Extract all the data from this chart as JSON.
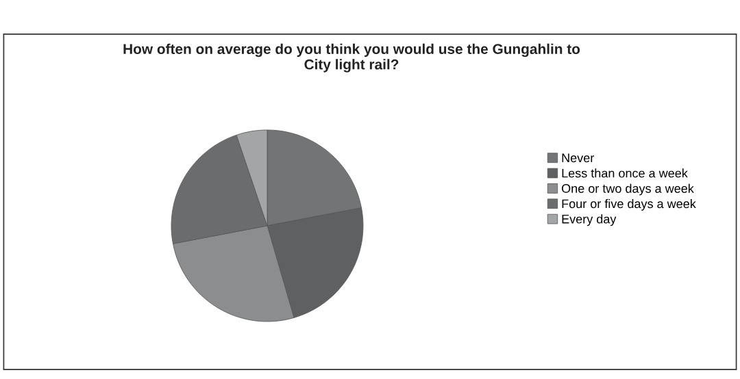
{
  "chart_data": {
    "type": "pie",
    "title": "How often on average do you think you would use the Gungahlin to\nCity light rail?",
    "categories": [
      "Never",
      "Less than once a week",
      "One or two days a week",
      "Four or five days a week",
      "Every day"
    ],
    "values": [
      22,
      23.5,
      26.5,
      22.8,
      5.2
    ],
    "colors": [
      "#727476",
      "#5e6062",
      "#8b8d8f",
      "#6a6c6e",
      "#a3a5a7"
    ],
    "legend": "right"
  }
}
